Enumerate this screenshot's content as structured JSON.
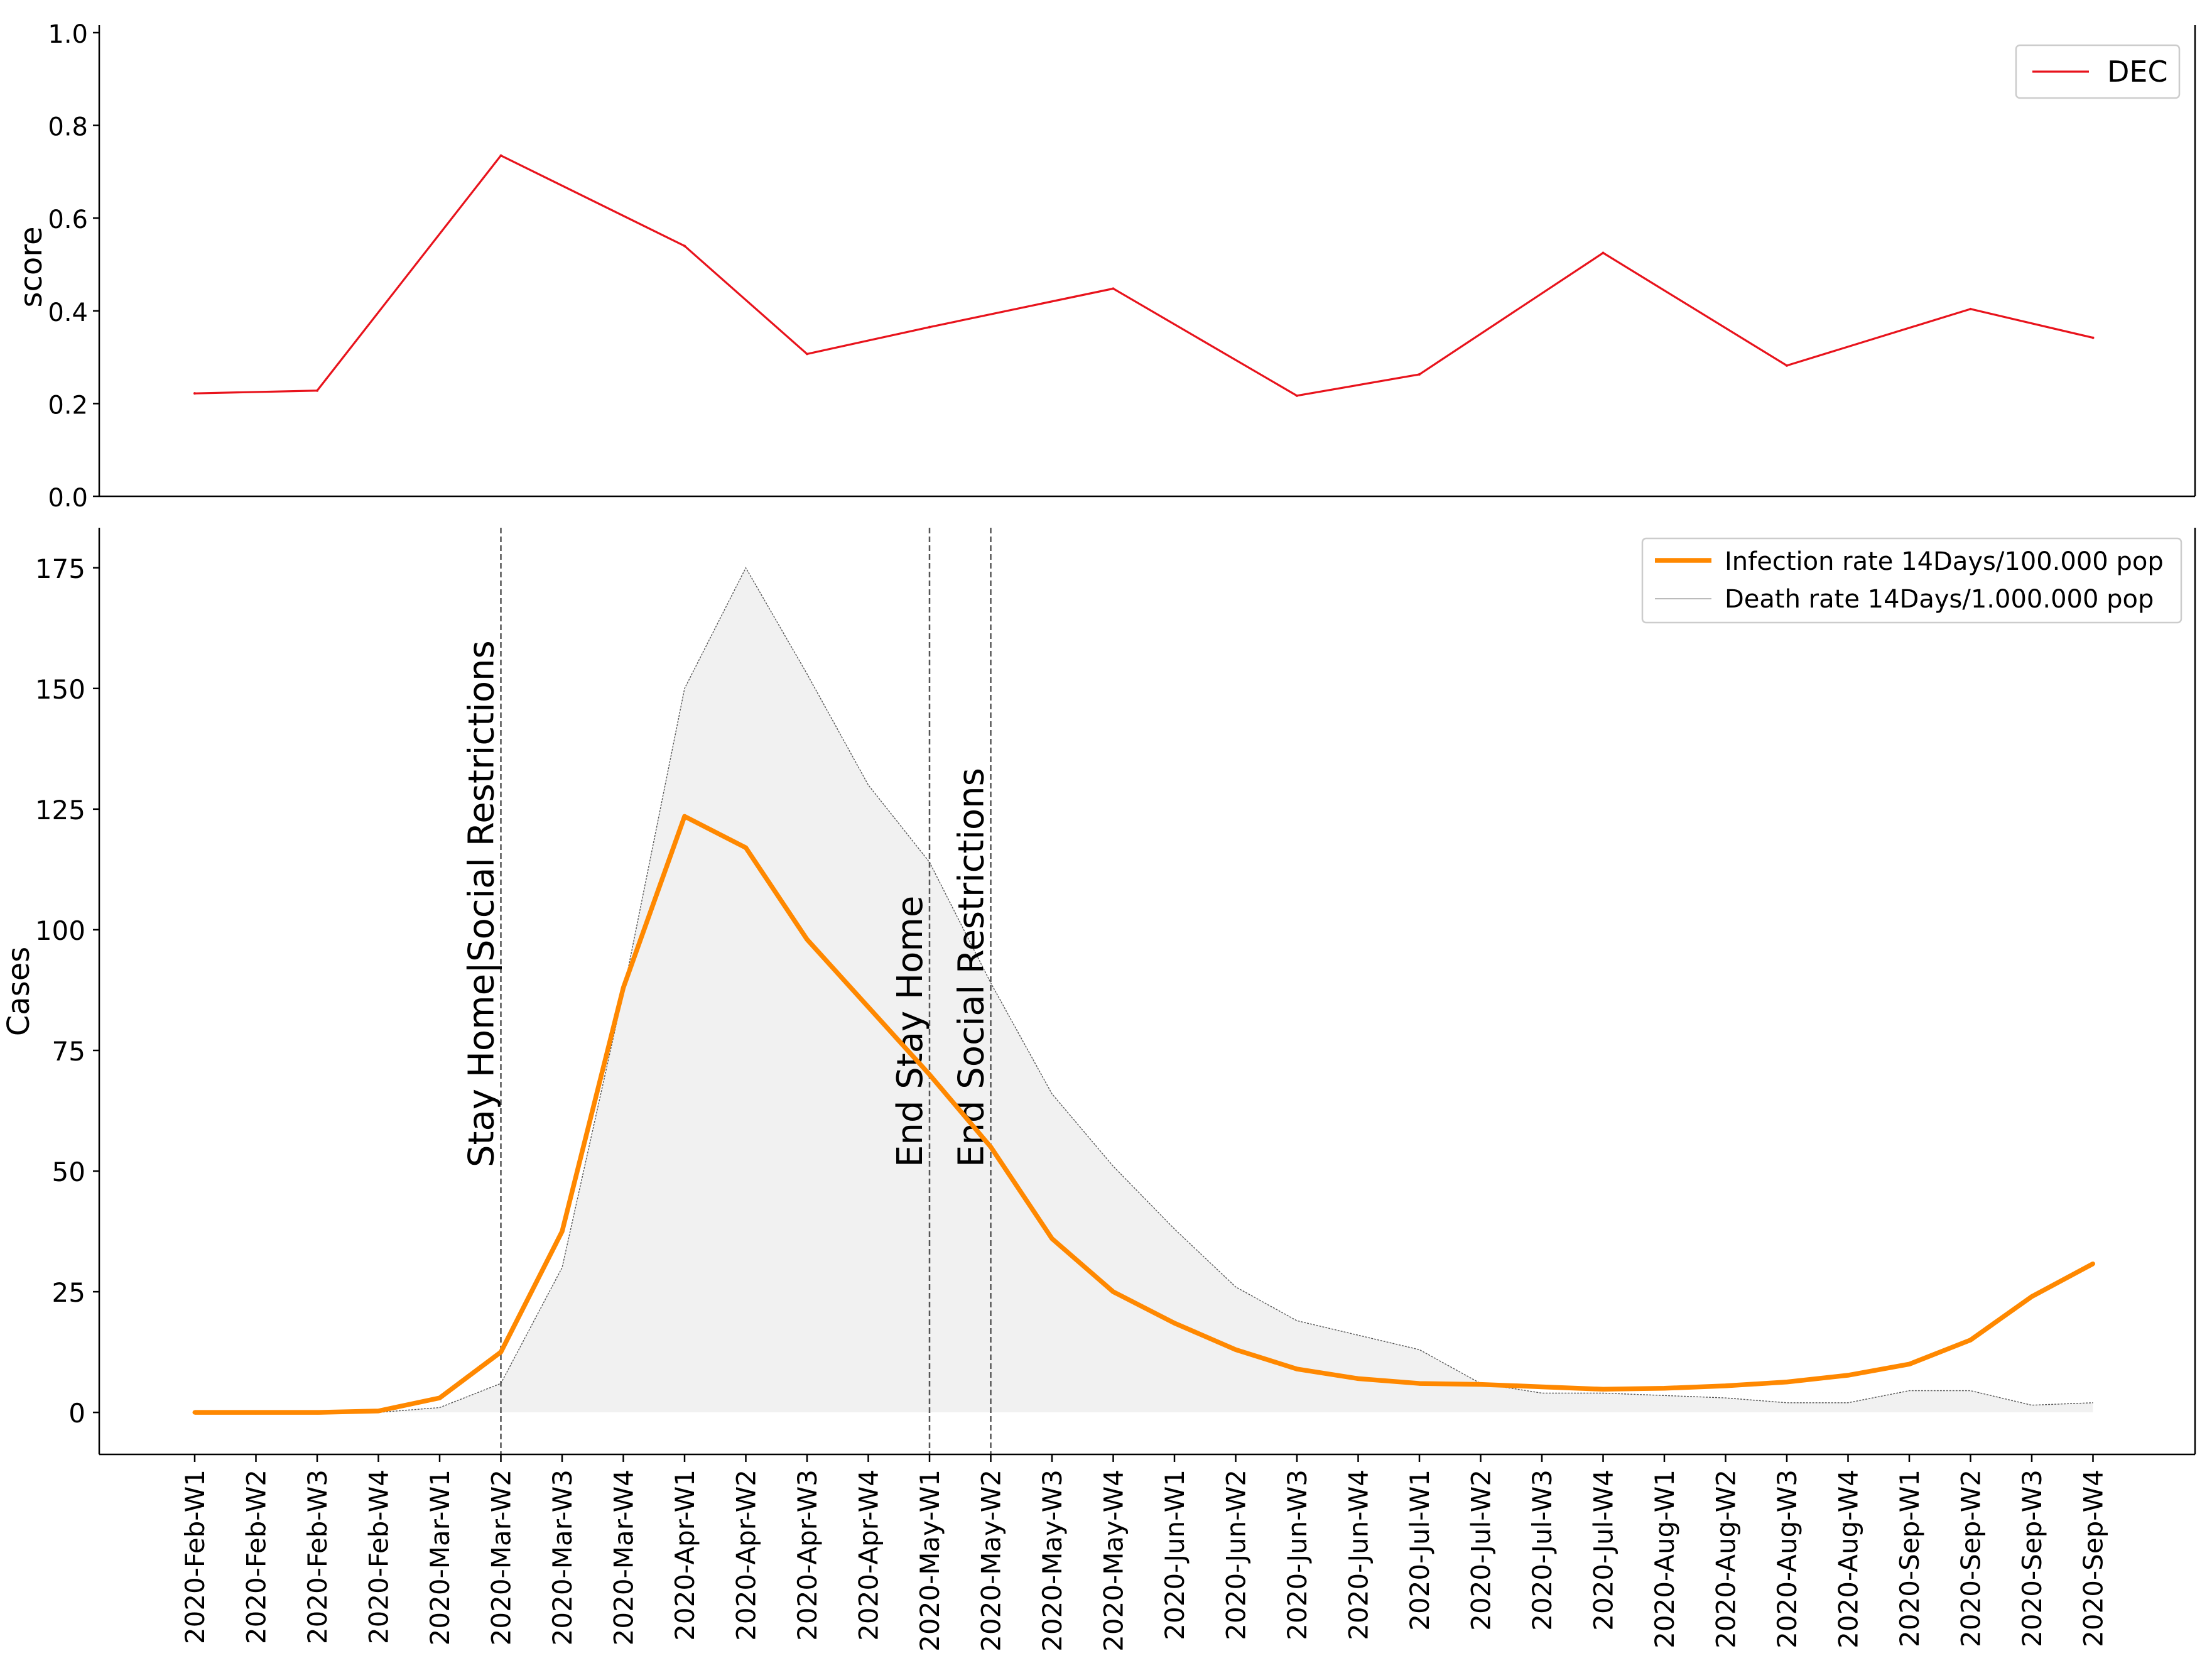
{
  "chart_data": [
    {
      "type": "line",
      "categories": [
        "2020-Feb-W1",
        "2020-Feb-W2",
        "2020-Feb-W3",
        "2020-Feb-W4",
        "2020-Mar-W1",
        "2020-Mar-W2",
        "2020-Mar-W3",
        "2020-Mar-W4",
        "2020-Apr-W1",
        "2020-Apr-W2",
        "2020-Apr-W3",
        "2020-Apr-W4",
        "2020-May-W1",
        "2020-May-W2",
        "2020-May-W3",
        "2020-May-W4",
        "2020-Jun-W1",
        "2020-Jun-W2",
        "2020-Jun-W3",
        "2020-Jun-W4",
        "2020-Jul-W1",
        "2020-Jul-W2",
        "2020-Jul-W3",
        "2020-Jul-W4",
        "2020-Aug-W1",
        "2020-Aug-W2",
        "2020-Aug-W3",
        "2020-Aug-W4",
        "2020-Sep-W1",
        "2020-Sep-W2",
        "2020-Sep-W3",
        "2020-Sep-W4"
      ],
      "series": [
        {
          "name": "DEC",
          "color": "#e8131c",
          "values": [
            0.222,
            null,
            0.228,
            null,
            null,
            0.735,
            null,
            null,
            0.54,
            null,
            0.307,
            null,
            0.365,
            null,
            null,
            0.448,
            null,
            null,
            0.217,
            null,
            0.263,
            null,
            null,
            0.525,
            null,
            null,
            0.282,
            null,
            null,
            0.404,
            null,
            0.342
          ]
        }
      ],
      "ylabel": "score",
      "ylim": [
        0.0,
        1.0
      ],
      "yticks": [
        "0.0",
        "0.2",
        "0.4",
        "0.6",
        "0.8",
        "1.0"
      ],
      "legend": {
        "position": "top-right",
        "entries": [
          "DEC"
        ]
      }
    },
    {
      "type": "line",
      "categories": [
        "2020-Feb-W1",
        "2020-Feb-W2",
        "2020-Feb-W3",
        "2020-Feb-W4",
        "2020-Mar-W1",
        "2020-Mar-W2",
        "2020-Mar-W3",
        "2020-Mar-W4",
        "2020-Apr-W1",
        "2020-Apr-W2",
        "2020-Apr-W3",
        "2020-Apr-W4",
        "2020-May-W1",
        "2020-May-W2",
        "2020-May-W3",
        "2020-May-W4",
        "2020-Jun-W1",
        "2020-Jun-W2",
        "2020-Jun-W3",
        "2020-Jun-W4",
        "2020-Jul-W1",
        "2020-Jul-W2",
        "2020-Jul-W3",
        "2020-Jul-W4",
        "2020-Aug-W1",
        "2020-Aug-W2",
        "2020-Aug-W3",
        "2020-Aug-W4",
        "2020-Sep-W1",
        "2020-Sep-W2",
        "2020-Sep-W3",
        "2020-Sep-W4"
      ],
      "series": [
        {
          "name": "Infection rate 14Days/100.000 pop",
          "color": "#ff8800",
          "values": [
            0,
            0,
            0,
            0.3,
            3,
            12.5,
            37.5,
            88,
            123.5,
            117,
            98,
            84,
            70,
            55,
            36,
            25,
            18.5,
            13,
            9,
            7,
            6,
            5.8,
            5.3,
            4.8,
            5,
            5.5,
            6.3,
            7.7,
            10,
            15,
            24,
            30.8
          ]
        },
        {
          "name": "Death rate 14Days/1.000.000 pop",
          "color": "#a0a0a0",
          "fill": "#f1f1f1",
          "values": [
            0,
            0,
            0,
            0,
            1,
            6,
            30,
            87,
            150,
            175,
            153,
            130,
            114,
            89,
            66,
            51,
            38,
            26,
            19,
            16,
            13,
            6,
            4,
            4,
            3.5,
            3,
            2,
            2,
            4.5,
            4.5,
            1.5,
            2
          ]
        }
      ],
      "ylabel": "Cases",
      "ylim": [
        -8.7,
        183.3
      ],
      "yticks": [
        "0",
        "25",
        "50",
        "75",
        "100",
        "125",
        "150",
        "175"
      ],
      "legend": {
        "position": "top-right",
        "entries": [
          "Infection rate 14Days/100.000 pop",
          "Death rate 14Days/1.000.000 pop"
        ]
      },
      "events": [
        {
          "index": 5,
          "label": "Stay Home|Social Restrictions"
        },
        {
          "index": 12,
          "label": "End Stay Home"
        },
        {
          "index": 13,
          "label": "End Social Restrictions"
        }
      ]
    }
  ]
}
